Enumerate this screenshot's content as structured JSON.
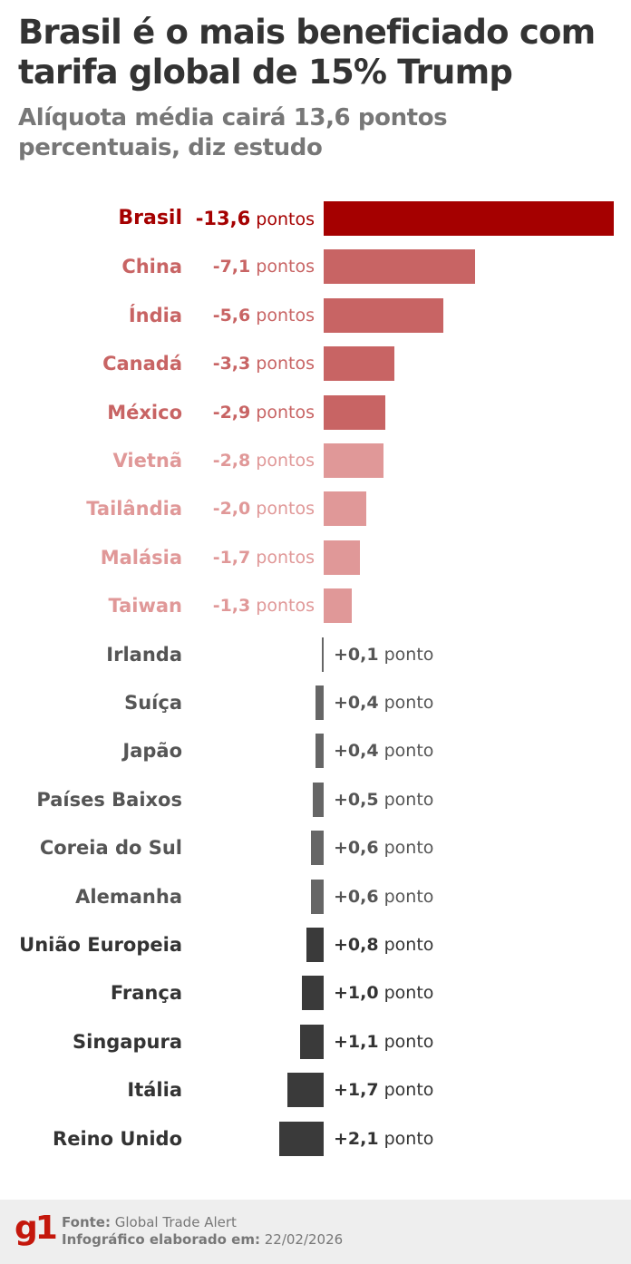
{
  "header": {
    "title": "Brasil é o mais beneficiado com tarifa global de 15% Trump",
    "subtitle": "Alíquota média cairá 13,6 pontos percentuais, diz estudo"
  },
  "chart_data": {
    "type": "bar",
    "orientation": "horizontal",
    "title": "Brasil é o mais beneficiado com tarifa global de 15% Trump",
    "subtitle": "Alíquota média cairá 13,6 pontos percentuais, diz estudo",
    "categories": [
      "Brasil",
      "China",
      "Índia",
      "Canadá",
      "México",
      "Vietnã",
      "Tailândia",
      "Malásia",
      "Taiwan",
      "Irlanda",
      "Suíça",
      "Japão",
      "Países Baixos",
      "Coreia do Sul",
      "Alemanha",
      "União Europeia",
      "França",
      "Singapura",
      "Itália",
      "Reino Unido"
    ],
    "values": [
      -13.6,
      -7.1,
      -5.6,
      -3.3,
      -2.9,
      -2.8,
      -2.0,
      -1.7,
      -1.3,
      0.1,
      0.4,
      0.4,
      0.5,
      0.6,
      0.6,
      0.8,
      1.0,
      1.1,
      1.7,
      2.1
    ],
    "value_labels": [
      "-13,6",
      "-7,1",
      "-5,6",
      "-3,3",
      "-2,9",
      "-2,8",
      "-2,0",
      "-1,7",
      "-1,3",
      "+0,1",
      "+0,4",
      "+0,4",
      "+0,5",
      "+0,6",
      "+0,6",
      "+0,8",
      "+1,0",
      "+1,1",
      "+1,7",
      "+2,1"
    ],
    "units": [
      "pontos",
      "pontos",
      "pontos",
      "pontos",
      "pontos",
      "pontos",
      "pontos",
      "pontos",
      "pontos",
      "ponto",
      "ponto",
      "ponto",
      "ponto",
      "ponto",
      "ponto",
      "ponto",
      "ponto",
      "ponto",
      "ponto",
      "ponto"
    ],
    "bar_colors": [
      "#a50000",
      "#c86464",
      "#c86464",
      "#c86464",
      "#c86464",
      "#e09898",
      "#e09898",
      "#e09898",
      "#e09898",
      "#666666",
      "#666666",
      "#666666",
      "#666666",
      "#666666",
      "#666666",
      "#3a3a3a",
      "#3a3a3a",
      "#3a3a3a",
      "#3a3a3a",
      "#3a3a3a"
    ],
    "label_colors": [
      "#a50000",
      "#c86464",
      "#c86464",
      "#c86464",
      "#c86464",
      "#e09898",
      "#e09898",
      "#e09898",
      "#e09898",
      "#555555",
      "#555555",
      "#555555",
      "#555555",
      "#555555",
      "#555555",
      "#333333",
      "#333333",
      "#333333",
      "#333333",
      "#333333"
    ],
    "xlabel": "",
    "ylabel": "",
    "grid": false
  },
  "footer": {
    "logo": "g1",
    "source_label": "Fonte:",
    "source": "Global Trade Alert",
    "date_label": "Infográfico elaborado em:",
    "date": "22/02/2026"
  }
}
